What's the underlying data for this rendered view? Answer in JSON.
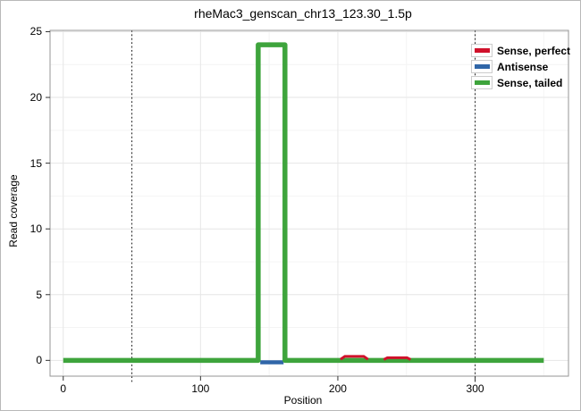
{
  "figure": {
    "background": "#ffffff",
    "border_color": "#b9b9b9"
  },
  "chart_data": {
    "type": "line",
    "title": "rheMac3_genscan_chr13_123.30_1.5p",
    "xlabel": "Position",
    "ylabel": "Read coverage",
    "xlim": [
      -9.6,
      368
    ],
    "ylim": [
      -1.2,
      25.1
    ],
    "xticks": [
      0,
      100,
      200,
      300
    ],
    "yticks": [
      0,
      5,
      10,
      15,
      20,
      25
    ],
    "x_minor_gridlines": [
      50,
      150,
      250,
      350
    ],
    "y_minor_gridlines": [
      2.5,
      7.5,
      12.5,
      17.5,
      22.5
    ],
    "grid": "on",
    "major_grid_color": "#e6e6e6",
    "minor_grid_color": "#f4f4f4",
    "panel_border_color": "#969696",
    "tick_color": "#333333",
    "guide_vlines": {
      "positions": [
        50,
        300
      ],
      "style": "dotted",
      "color": "#1a1a1a"
    },
    "series": [
      {
        "name": "Antisense",
        "color": "#3066a8",
        "stroke_width": 4.5,
        "points": [
          [
            143.5,
            -0.15
          ],
          [
            160.5,
            -0.15
          ]
        ]
      },
      {
        "name": "Sense, tailed",
        "color": "#3ea43c",
        "stroke_width": 5.5,
        "points": [
          [
            0,
            0
          ],
          [
            142,
            0
          ],
          [
            142,
            24
          ],
          [
            161.5,
            24
          ],
          [
            161.5,
            0
          ],
          [
            350,
            0
          ]
        ]
      },
      {
        "name": "Sense, perfect",
        "color": "#d0112b",
        "stroke_width": 3,
        "points": [
          [
            202,
            0.08
          ],
          [
            205,
            0.3
          ],
          [
            219,
            0.3
          ],
          [
            222,
            0.08
          ]
        ]
      },
      {
        "name": "Sense, perfect",
        "color": "#d0112b",
        "stroke_width": 3,
        "points": [
          [
            233.5,
            0.06
          ],
          [
            236,
            0.2
          ],
          [
            250.5,
            0.2
          ],
          [
            253,
            0.06
          ]
        ]
      }
    ],
    "legend": {
      "position": "top-right-inside",
      "entries": [
        {
          "label": "Sense, perfect",
          "color": "#d0112b"
        },
        {
          "label": "Antisense",
          "color": "#3066a8"
        },
        {
          "label": "Sense, tailed",
          "color": "#3ea43c"
        }
      ]
    }
  }
}
